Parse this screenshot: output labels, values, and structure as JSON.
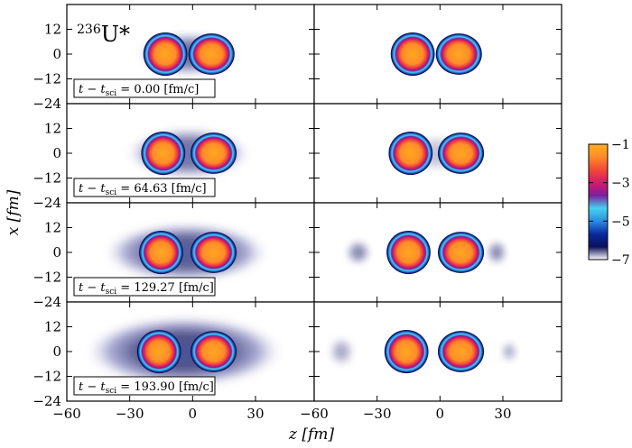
{
  "chart_data": {
    "type": "heatmap",
    "title": "236U*",
    "xlabel": "z [fm]",
    "ylabel": "x [fm]",
    "xlim": [
      -60,
      58
    ],
    "ylim": [
      -24,
      24
    ],
    "x_ticks": [
      -60,
      -30,
      0,
      30
    ],
    "y_ticks": [
      -24,
      -12,
      0,
      12
    ],
    "colorbar": {
      "range": [
        -7,
        -1
      ],
      "ticks": [
        -1,
        -3,
        -5,
        -7
      ],
      "colors": [
        "#ffffff",
        "#0d0f5a",
        "#0a2a9e",
        "#2a8ce0",
        "#45d2f0",
        "#7a1f9c",
        "#d8186a",
        "#f04838",
        "#ff8a2a",
        "#ffb020"
      ]
    },
    "label_prefix": "t − t",
    "label_sub": "sci",
    "label_unit": "[fm/c]",
    "rows": [
      {
        "time": "0.00",
        "left": {
          "lobes": [
            {
              "z": -13,
              "x": 0,
              "rz": 7.5,
              "rx": 7.5
            },
            {
              "z": 9,
              "x": 0,
              "rz": 8,
              "rx": 7
            }
          ],
          "halo": [
            {
              "z": -2,
              "x": 0,
              "rz": 25,
              "rx": 11,
              "level": -5.8
            }
          ]
        },
        "right": {
          "lobes": [
            {
              "z": -13,
              "x": 0,
              "rz": 7.5,
              "rx": 7.5
            },
            {
              "z": 9,
              "x": 0,
              "rz": 8,
              "rx": 7
            }
          ],
          "halo": []
        }
      },
      {
        "time": "64.63",
        "left": {
          "lobes": [
            {
              "z": -14,
              "x": 0,
              "rz": 7.5,
              "rx": 7.5
            },
            {
              "z": 10,
              "x": 0,
              "rz": 8,
              "rx": 7
            }
          ],
          "halo": [
            {
              "z": -2,
              "x": 0,
              "rz": 30,
              "rx": 13,
              "level": -5.8
            }
          ]
        },
        "right": {
          "lobes": [
            {
              "z": -14,
              "x": 0,
              "rz": 7.5,
              "rx": 7.5
            },
            {
              "z": 10,
              "x": 0,
              "rz": 8,
              "rx": 7
            }
          ],
          "halo": [
            {
              "z": -2,
              "x": 0,
              "rz": 24,
              "rx": 9,
              "level": -6.5
            }
          ]
        }
      },
      {
        "time": "129.27",
        "left": {
          "lobes": [
            {
              "z": -15,
              "x": 0,
              "rz": 7.5,
              "rx": 7.5
            },
            {
              "z": 10,
              "x": 0,
              "rz": 8,
              "rx": 7
            }
          ],
          "halo": [
            {
              "z": -3,
              "x": 0,
              "rz": 40,
              "rx": 15,
              "level": -5.6
            }
          ]
        },
        "right": {
          "lobes": [
            {
              "z": -15,
              "x": 0,
              "rz": 7.5,
              "rx": 7.5
            },
            {
              "z": 10,
              "x": 0,
              "rz": 8,
              "rx": 7
            }
          ],
          "halo": [
            {
              "z": -39,
              "x": 0,
              "rz": 6,
              "rx": 6,
              "level": -6.0
            },
            {
              "z": 27,
              "x": 0,
              "rz": 5,
              "rx": 6,
              "level": -6.0
            }
          ]
        }
      },
      {
        "time": "193.90",
        "left": {
          "lobes": [
            {
              "z": -16,
              "x": 0,
              "rz": 7.5,
              "rx": 7.5
            },
            {
              "z": 10,
              "x": 0,
              "rz": 8,
              "rx": 7
            }
          ],
          "halo": [
            {
              "z": -4,
              "x": 0,
              "rz": 48,
              "rx": 18,
              "level": -5.5
            }
          ]
        },
        "right": {
          "lobes": [
            {
              "z": -16,
              "x": 0,
              "rz": 7.5,
              "rx": 7.5
            },
            {
              "z": 10,
              "x": 0,
              "rz": 8,
              "rx": 7
            }
          ],
          "halo": [
            {
              "z": -47,
              "x": 0,
              "rz": 6,
              "rx": 7,
              "level": -6.3
            },
            {
              "z": 33,
              "x": 0,
              "rz": 4,
              "rx": 5,
              "level": -6.3
            }
          ]
        }
      }
    ]
  }
}
